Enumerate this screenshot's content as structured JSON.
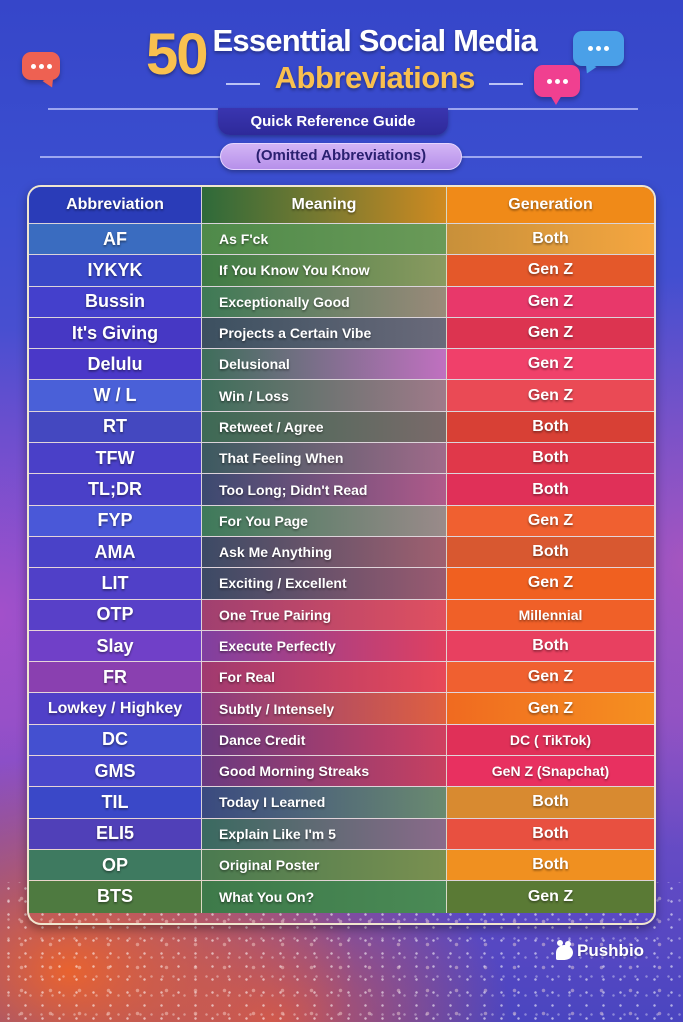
{
  "header": {
    "number": "50",
    "title_line1": "Essenttial Social Media",
    "title_line2": "Abbreviations",
    "subtitle": "Quick Reference Guide",
    "note": "(Omitted Abbreviations)"
  },
  "icons": {
    "bubble_left": "chat-bubble-red",
    "bubble_top_right": "chat-bubble-blue",
    "bubble_bottom_right": "chat-bubble-pink"
  },
  "colors": {
    "gold": "#f9c04f",
    "bubble_red": "#ee6152",
    "bubble_blue": "#4aa0e8",
    "bubble_pink": "#f04090",
    "table_border": "#f0e6cf"
  },
  "table": {
    "columns": [
      "Abbreviation",
      "Meaning",
      "Generation"
    ],
    "rows": [
      {
        "abbr": "AF",
        "meaning": "As F'ck",
        "generation": "Both"
      },
      {
        "abbr": "IYKYK",
        "meaning": "If You Know You Know",
        "generation": "Gen Z"
      },
      {
        "abbr": "Bussin",
        "meaning": "Exceptionally Good",
        "generation": "Gen Z"
      },
      {
        "abbr": "It's Giving",
        "meaning": "Projects a Certain Vibe",
        "generation": "Gen Z"
      },
      {
        "abbr": "Delulu",
        "meaning": "Delusional",
        "generation": "Gen Z"
      },
      {
        "abbr": "W / L",
        "meaning": "Win / Loss",
        "generation": "Gen Z"
      },
      {
        "abbr": "RT",
        "meaning": "Retweet / Agree",
        "generation": "Both"
      },
      {
        "abbr": "TFW",
        "meaning": "That Feeling When",
        "generation": "Both"
      },
      {
        "abbr": "TL;DR",
        "meaning": "Too Long; Didn't Read",
        "generation": "Both"
      },
      {
        "abbr": "FYP",
        "meaning": "For You Page",
        "generation": "Gen Z"
      },
      {
        "abbr": "AMA",
        "meaning": "Ask Me Anything",
        "generation": "Both"
      },
      {
        "abbr": "LIT",
        "meaning": "Exciting / Excellent",
        "generation": "Gen Z"
      },
      {
        "abbr": "OTP",
        "meaning": "One True Pairing",
        "generation": "Millennial"
      },
      {
        "abbr": "Slay",
        "meaning": "Execute Perfectly",
        "generation": "Both"
      },
      {
        "abbr": "FR",
        "meaning": "For Real",
        "generation": "Gen Z"
      },
      {
        "abbr": "Lowkey / Highkey",
        "meaning": "Subtly / Intensely",
        "generation": "Gen Z"
      },
      {
        "abbr": "DC",
        "meaning": "Dance Credit",
        "generation": "DC ( TikTok)"
      },
      {
        "abbr": "GMS",
        "meaning": "Good Morning Streaks",
        "generation": "GeN Z (Snapchat)"
      },
      {
        "abbr": "TIL",
        "meaning": "Today I Learned",
        "generation": "Both"
      },
      {
        "abbr": "ELI5",
        "meaning": "Explain Like I'm 5",
        "generation": "Both"
      },
      {
        "abbr": "OP",
        "meaning": "Original Poster",
        "generation": "Both"
      },
      {
        "abbr": "BTS",
        "meaning": "What You On?",
        "generation": "Gen Z"
      }
    ]
  },
  "row_styles": [
    {
      "abbr": "#3a6cc0",
      "mean": "linear-gradient(90deg,#4f8a4a,#6a9a58)",
      "gen": "linear-gradient(90deg,#c8903a,#f5a640)"
    },
    {
      "abbr": "#3a48c8",
      "mean": "linear-gradient(90deg,#3e7a45,#8a9a60)",
      "gen": "#e4582a"
    },
    {
      "abbr": "#4440cc",
      "mean": "linear-gradient(90deg,#3e7a55,#9a8a7a)",
      "gen": "#e8386a"
    },
    {
      "abbr": "#4638c4",
      "mean": "linear-gradient(90deg,#3c5060,#6a6a7a)",
      "gen": "#dc3450"
    },
    {
      "abbr": "#4a38c8",
      "mean": "linear-gradient(90deg,#3e6e5a,#c070c0)",
      "gen": "#f0406a"
    },
    {
      "abbr": "#4a60d8",
      "mean": "linear-gradient(90deg,#3e6e5a,#a07a8a)",
      "gen": "#ea4a55"
    },
    {
      "abbr": "#4448c0",
      "mean": "linear-gradient(90deg,#3e6a55,#7a6a6a)",
      "gen": "#d84035"
    },
    {
      "abbr": "#4a40c8",
      "mean": "linear-gradient(90deg,#3c5a60,#a06a8a)",
      "gen": "#e0384a"
    },
    {
      "abbr": "#4a40c8",
      "mean": "linear-gradient(90deg,#3c4a70,#b05a8a)",
      "gen": "#e03058"
    },
    {
      "abbr": "#4a58d8",
      "mean": "linear-gradient(90deg,#3e7a5a,#9a8a8a)",
      "gen": "#f06030"
    },
    {
      "abbr": "#4a42c8",
      "mean": "linear-gradient(90deg,#3c4a65,#a06070)",
      "gen": "#d85830"
    },
    {
      "abbr": "#5040c8",
      "mean": "linear-gradient(90deg,#3c4a65,#9a5a70)",
      "gen": "#f06020"
    },
    {
      "abbr": "#5840c8",
      "mean": "linear-gradient(90deg,#a04070,#e05060)",
      "gen": "#f06028"
    },
    {
      "abbr": "#7040c8",
      "mean": "linear-gradient(90deg,#8040a0,#e04060)",
      "gen": "#e84060"
    },
    {
      "abbr": "#8a40b0",
      "mean": "linear-gradient(90deg,#a03a70,#e84858)",
      "gen": "#f06030"
    },
    {
      "abbr": "#5040c8",
      "mean": "linear-gradient(90deg,#8a3a80,#e06040)",
      "gen": "linear-gradient(90deg,#f06a20,#f59020)"
    },
    {
      "abbr": "#4450d0",
      "mean": "linear-gradient(90deg,#6a3a80,#d04060)",
      "gen": "#e03058"
    },
    {
      "abbr": "#4a48cc",
      "mean": "linear-gradient(90deg,#6a3a80,#c84060)",
      "gen": "#e83060"
    },
    {
      "abbr": "#3a48c8",
      "mean": "linear-gradient(90deg,#3a4a80,#6a8a70)",
      "gen": "#d88a30"
    },
    {
      "abbr": "#5040b8",
      "mean": "linear-gradient(90deg,#3a6a60,#8a6a8a)",
      "gen": "#e85040"
    },
    {
      "abbr": "#3e7a60",
      "mean": "linear-gradient(90deg,#4a7a50,#7a9050)",
      "gen": "#f09020"
    },
    {
      "abbr": "#4e7a40",
      "mean": "linear-gradient(90deg,#3e7a4a,#4a8a55)",
      "gen": "#5a7a35"
    }
  ],
  "header_styles": {
    "abbr": "#2a3cb8",
    "mean": "linear-gradient(90deg,#2e6a3a,#7a7a30,#d08a20)",
    "gen": "#f08a18"
  },
  "brand": {
    "name": "Pushbio"
  }
}
